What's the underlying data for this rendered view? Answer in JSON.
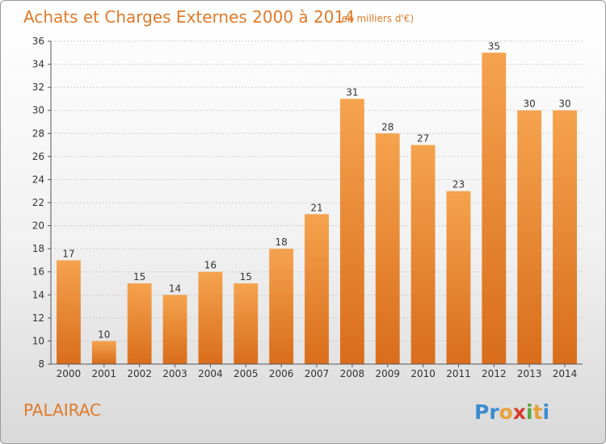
{
  "chart_data": {
    "type": "bar",
    "title": "Achats et Charges Externes 2000 à 2014",
    "subtitle": "(en milliers d'€)",
    "categories": [
      "2000",
      "2001",
      "2002",
      "2003",
      "2004",
      "2005",
      "2006",
      "2007",
      "2008",
      "2009",
      "2010",
      "2011",
      "2012",
      "2013",
      "2014"
    ],
    "values": [
      17,
      10,
      15,
      14,
      16,
      15,
      18,
      21,
      31,
      28,
      27,
      23,
      35,
      30,
      30
    ],
    "ylim": [
      8,
      36
    ],
    "yticks": [
      8,
      10,
      12,
      14,
      16,
      18,
      20,
      22,
      24,
      26,
      28,
      30,
      32,
      34,
      36
    ],
    "grid": true,
    "bar_color_top": "#f5a34e",
    "bar_color_bottom": "#d96d1b"
  },
  "location": "PALAIRAC",
  "logo": {
    "text": "Proxiti"
  }
}
